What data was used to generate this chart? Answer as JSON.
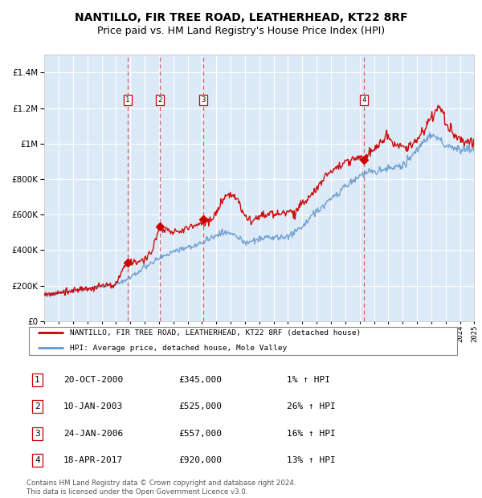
{
  "title": "NANTILLO, FIR TREE ROAD, LEATHERHEAD, KT22 8RF",
  "subtitle": "Price paid vs. HM Land Registry's House Price Index (HPI)",
  "ylabel_values": [
    0,
    200000,
    400000,
    600000,
    800000,
    1000000,
    1200000,
    1400000
  ],
  "ylabel_labels": [
    "£0",
    "£200K",
    "£400K",
    "£600K",
    "£800K",
    "£1M",
    "£1.2M",
    "£1.4M"
  ],
  "ylim": [
    0,
    1500000
  ],
  "x_start_year": 1995,
  "x_end_year": 2025,
  "fig_bg_color": "#ffffff",
  "plot_bg_color": "#dce9f7",
  "grid_color": "#ffffff",
  "sale_color": "#cc0000",
  "hpi_color": "#6699cc",
  "legend_sale_label": "NANTILLO, FIR TREE ROAD, LEATHERHEAD, KT22 8RF (detached house)",
  "legend_hpi_label": "HPI: Average price, detached house, Mole Valley",
  "sales": [
    {
      "num": 1,
      "date": "20-OCT-2000",
      "price": 345000,
      "hpi_pct": "1%",
      "year": 2000.8
    },
    {
      "num": 2,
      "date": "10-JAN-2003",
      "price": 525000,
      "hpi_pct": "26%",
      "year": 2003.05
    },
    {
      "num": 3,
      "date": "24-JAN-2006",
      "price": 557000,
      "hpi_pct": "16%",
      "year": 2006.07
    },
    {
      "num": 4,
      "date": "18-APR-2017",
      "price": 920000,
      "hpi_pct": "13%",
      "year": 2017.3
    }
  ],
  "footer": "Contains HM Land Registry data © Crown copyright and database right 2024.\nThis data is licensed under the Open Government Licence v3.0.",
  "title_fontsize": 10,
  "subtitle_fontsize": 9
}
